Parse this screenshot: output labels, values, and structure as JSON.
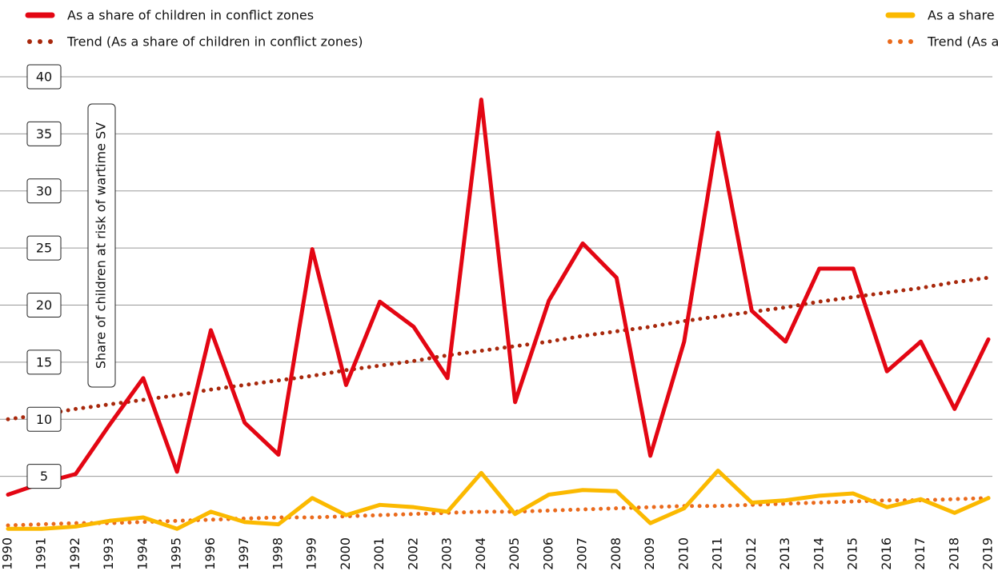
{
  "chart_data": {
    "type": "line",
    "y_label": "Share of children at risk of wartime SV",
    "categories": [
      "1990",
      "1991",
      "1992",
      "1993",
      "1994",
      "1995",
      "1996",
      "1997",
      "1998",
      "1999",
      "2000",
      "2001",
      "2002",
      "2003",
      "2004",
      "2005",
      "2006",
      "2007",
      "2008",
      "2009",
      "2010",
      "2011",
      "2012",
      "2013",
      "2014",
      "2015",
      "2016",
      "2017",
      "2018",
      "2019"
    ],
    "series": [
      {
        "name": "As a share of children in conflict zones",
        "color": "#e30613",
        "style": "solid",
        "values": [
          3.4,
          4.4,
          5.2,
          9.5,
          13.6,
          5.4,
          17.8,
          9.7,
          6.9,
          24.9,
          13.0,
          20.3,
          18.1,
          13.6,
          38.0,
          11.5,
          20.4,
          25.4,
          22.4,
          6.8,
          16.8,
          35.1,
          19.5,
          16.8,
          23.2,
          23.2,
          14.2,
          16.8,
          10.9,
          17.0
        ]
      },
      {
        "name": "As a share of all children in the world",
        "color": "#fbb900",
        "style": "solid",
        "values": [
          0.4,
          0.4,
          0.6,
          1.1,
          1.4,
          0.4,
          1.9,
          1.0,
          0.8,
          3.1,
          1.6,
          2.5,
          2.3,
          1.9,
          5.3,
          1.7,
          3.4,
          3.8,
          3.7,
          0.9,
          2.2,
          5.5,
          2.7,
          2.9,
          3.3,
          3.5,
          2.3,
          3.0,
          1.8,
          3.1
        ]
      },
      {
        "name": "Trend (As a share of children in conflict zones)",
        "color": "#a8280c",
        "style": "dotted",
        "values": [
          10.0,
          10.4,
          10.9,
          11.3,
          11.7,
          12.1,
          12.6,
          13.0,
          13.4,
          13.8,
          14.3,
          14.7,
          15.1,
          15.6,
          16.0,
          16.4,
          16.8,
          17.3,
          17.7,
          18.1,
          18.6,
          19.0,
          19.4,
          19.8,
          20.3,
          20.7,
          21.1,
          21.5,
          22.0,
          22.4
        ]
      },
      {
        "name": "Trend (As a share of all children in the world)",
        "color": "#ea6a1c",
        "style": "dotted",
        "values": [
          0.7,
          0.8,
          0.9,
          0.9,
          1.0,
          1.1,
          1.2,
          1.3,
          1.4,
          1.4,
          1.5,
          1.6,
          1.7,
          1.8,
          1.9,
          1.9,
          2.0,
          2.1,
          2.2,
          2.3,
          2.4,
          2.4,
          2.5,
          2.6,
          2.7,
          2.8,
          2.9,
          2.9,
          3.0,
          3.1
        ]
      }
    ],
    "ylim": [
      0,
      40
    ],
    "yticks": [
      5,
      10,
      15,
      20,
      25,
      30,
      35,
      40
    ],
    "grid": true
  }
}
